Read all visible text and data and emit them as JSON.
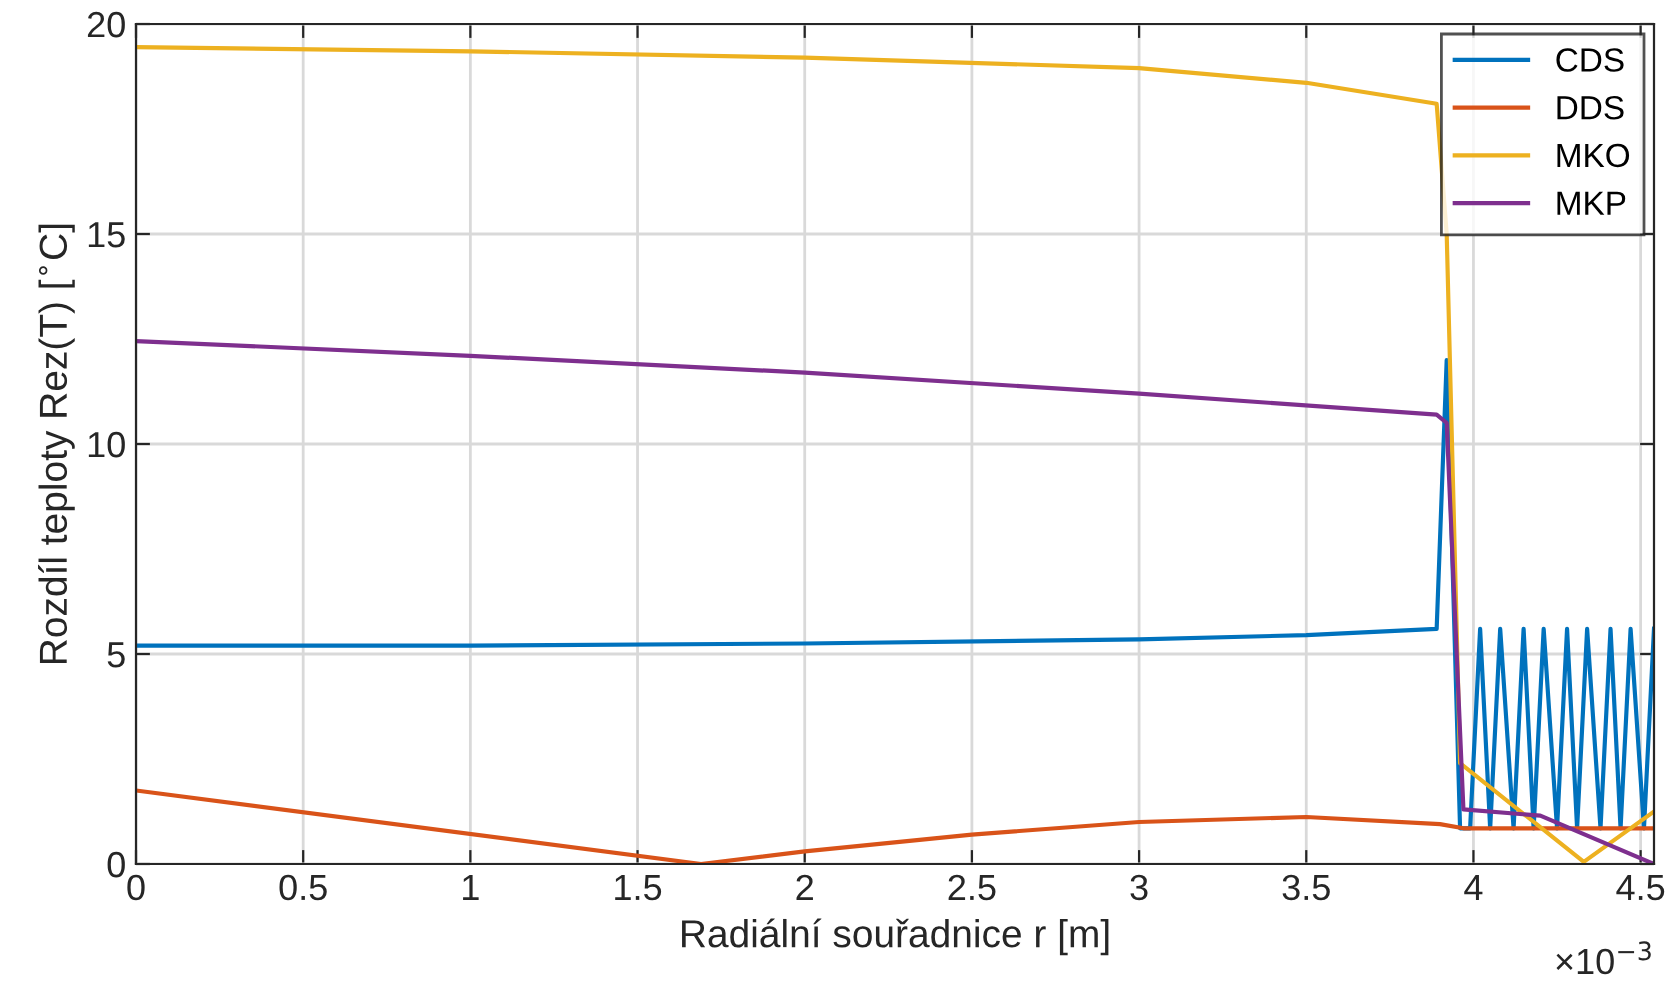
{
  "chart_data": {
    "type": "line",
    "xlabel": "Radiální souřadnice r [m]",
    "ylabel": "Rozdíl teploty Rez(T) [$^{∘}$C]",
    "annotations": [
      "×10$^{−3}$"
    ],
    "xlim": [
      0,
      4.54
    ],
    "ylim": [
      0,
      20
    ],
    "xticks": [
      0,
      0.5,
      1,
      1.5,
      2,
      2.5,
      3,
      3.5,
      4,
      4.5
    ],
    "yticks": [
      0,
      5,
      10,
      15,
      20
    ],
    "grid": true,
    "legend": "top right",
    "series": [
      {
        "name": "CDS",
        "color": "#0072bd",
        "x": [
          0,
          1,
          2,
          3,
          3.5,
          3.89,
          3.92,
          3.96,
          3.99,
          4.02,
          4.05,
          4.08,
          4.12,
          4.15,
          4.18,
          4.21,
          4.25,
          4.28,
          4.31,
          4.34,
          4.38,
          4.41,
          4.44,
          4.47,
          4.51,
          4.54
        ],
        "values": [
          5.2,
          5.2,
          5.25,
          5.35,
          5.45,
          5.6,
          12,
          0.85,
          0.85,
          5.6,
          0.85,
          5.6,
          0.85,
          5.6,
          0.85,
          5.6,
          0.85,
          5.6,
          0.85,
          5.6,
          0.85,
          5.6,
          0.85,
          5.6,
          0.85,
          5.6
        ]
      },
      {
        "name": "DDS",
        "color": "#d95319",
        "x": [
          0,
          1.69,
          2,
          2.5,
          3,
          3.5,
          3.9,
          3.97,
          4.54
        ],
        "values": [
          1.75,
          0,
          0.3,
          0.7,
          1.0,
          1.12,
          0.95,
          0.85,
          0.85
        ]
      },
      {
        "name": "MKO",
        "color": "#edb120",
        "x": [
          0,
          1,
          2,
          3,
          3.5,
          3.89,
          3.92,
          3.96,
          4.33,
          4.54
        ],
        "values": [
          19.45,
          19.35,
          19.2,
          18.95,
          18.6,
          18.1,
          15,
          2.4,
          0.05,
          1.25
        ]
      },
      {
        "name": "MKP",
        "color": "#7e2f8e",
        "x": [
          0,
          1,
          2,
          3,
          3.89,
          3.92,
          3.97,
          4.2,
          4.54
        ],
        "values": [
          12.45,
          12.1,
          11.7,
          11.2,
          10.7,
          10.5,
          1.3,
          1.15,
          0
        ]
      }
    ]
  }
}
